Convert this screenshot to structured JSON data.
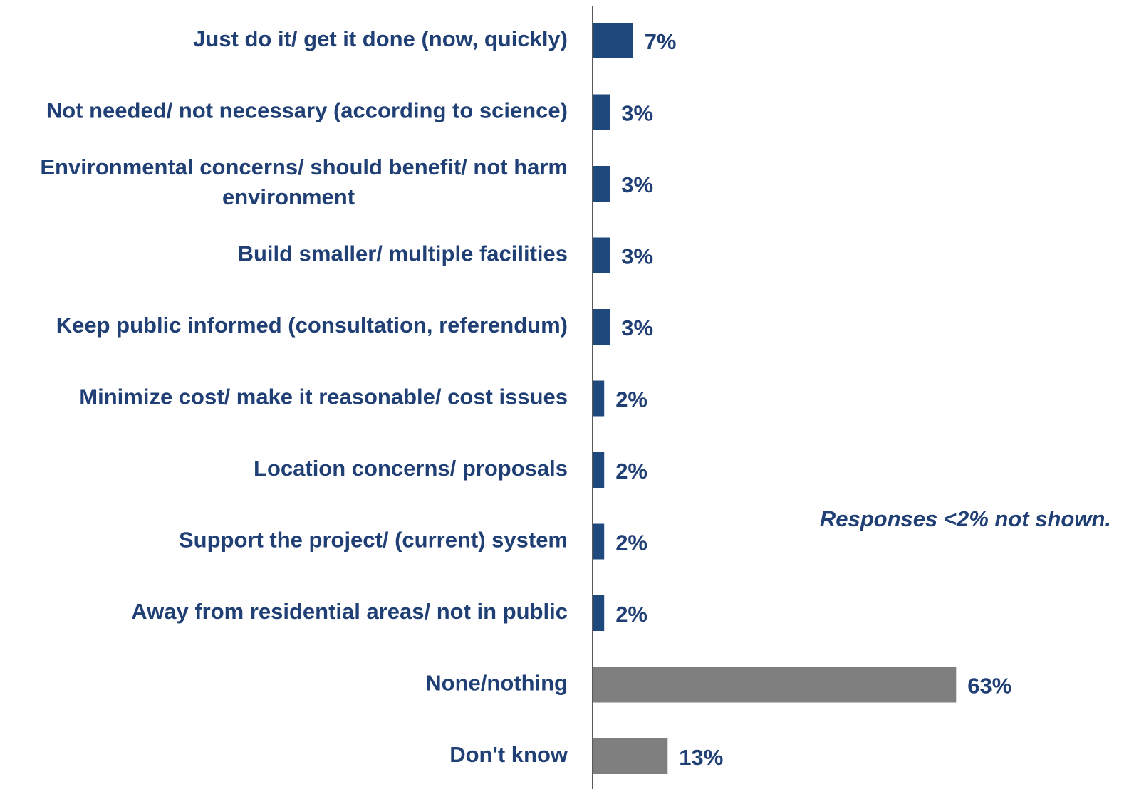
{
  "chart_data": {
    "type": "bar",
    "orientation": "horizontal",
    "categories": [
      [
        "Just do it/ get it done (now, quickly)"
      ],
      [
        "Not needed/ not necessary (according to science)"
      ],
      [
        "Environmental concerns/ should benefit/ not harm",
        "environment"
      ],
      [
        "Build smaller/ multiple facilities"
      ],
      [
        "Keep public informed (consultation, referendum)"
      ],
      [
        "Minimize cost/ make it reasonable/ cost issues"
      ],
      [
        "Location concerns/ proposals"
      ],
      [
        "Support the project/ (current) system"
      ],
      [
        "Away from residential areas/ not in public"
      ],
      [
        "None/nothing"
      ],
      [
        "Don't know"
      ]
    ],
    "values": [
      7,
      3,
      3,
      3,
      3,
      2,
      2,
      2,
      2,
      63,
      13
    ],
    "value_labels": [
      "7%",
      "3%",
      "3%",
      "3%",
      "3%",
      "2%",
      "2%",
      "2%",
      "2%",
      "63%",
      "13%"
    ],
    "bar_colors": [
      "#1f497d",
      "#1f497d",
      "#1f497d",
      "#1f497d",
      "#1f497d",
      "#1f497d",
      "#1f497d",
      "#1f497d",
      "#1f497d",
      "#7f7f7f",
      "#7f7f7f"
    ],
    "label_color": "#1f3f75",
    "axis_color": "#595959",
    "note": "Responses <2% not shown.",
    "title": "",
    "xlabel": "",
    "ylabel": "",
    "xlim": [
      0,
      63
    ],
    "grid": false,
    "legend": "none"
  }
}
